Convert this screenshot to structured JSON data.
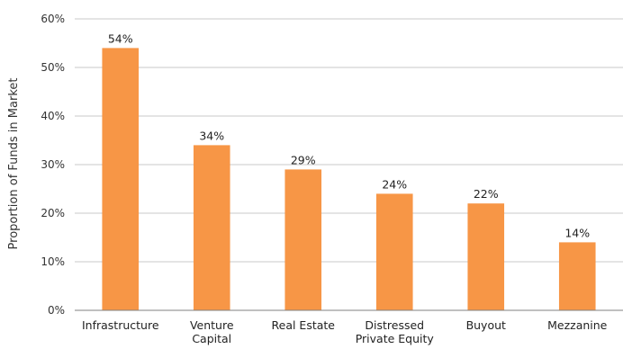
{
  "chart_data": {
    "type": "bar",
    "title": "",
    "xlabel": "",
    "ylabel": "Proportion of Funds in Market",
    "categories": [
      [
        "Infrastructure"
      ],
      [
        "Venture",
        "Capital"
      ],
      [
        "Real Estate"
      ],
      [
        "Distressed",
        "Private Equity"
      ],
      [
        "Buyout"
      ],
      [
        "Mezzanine"
      ]
    ],
    "values": [
      54,
      34,
      29,
      24,
      22,
      14
    ],
    "data_labels": [
      "54%",
      "34%",
      "29%",
      "24%",
      "22%",
      "14%"
    ],
    "yticks": [
      "0%",
      "10%",
      "20%",
      "30%",
      "40%",
      "50%",
      "60%"
    ],
    "ylim": [
      0,
      60
    ],
    "grid": true,
    "legend": "none",
    "colors": {
      "bar": "#F79646",
      "grid": "#C8C8C8",
      "axis": "#808080"
    }
  }
}
